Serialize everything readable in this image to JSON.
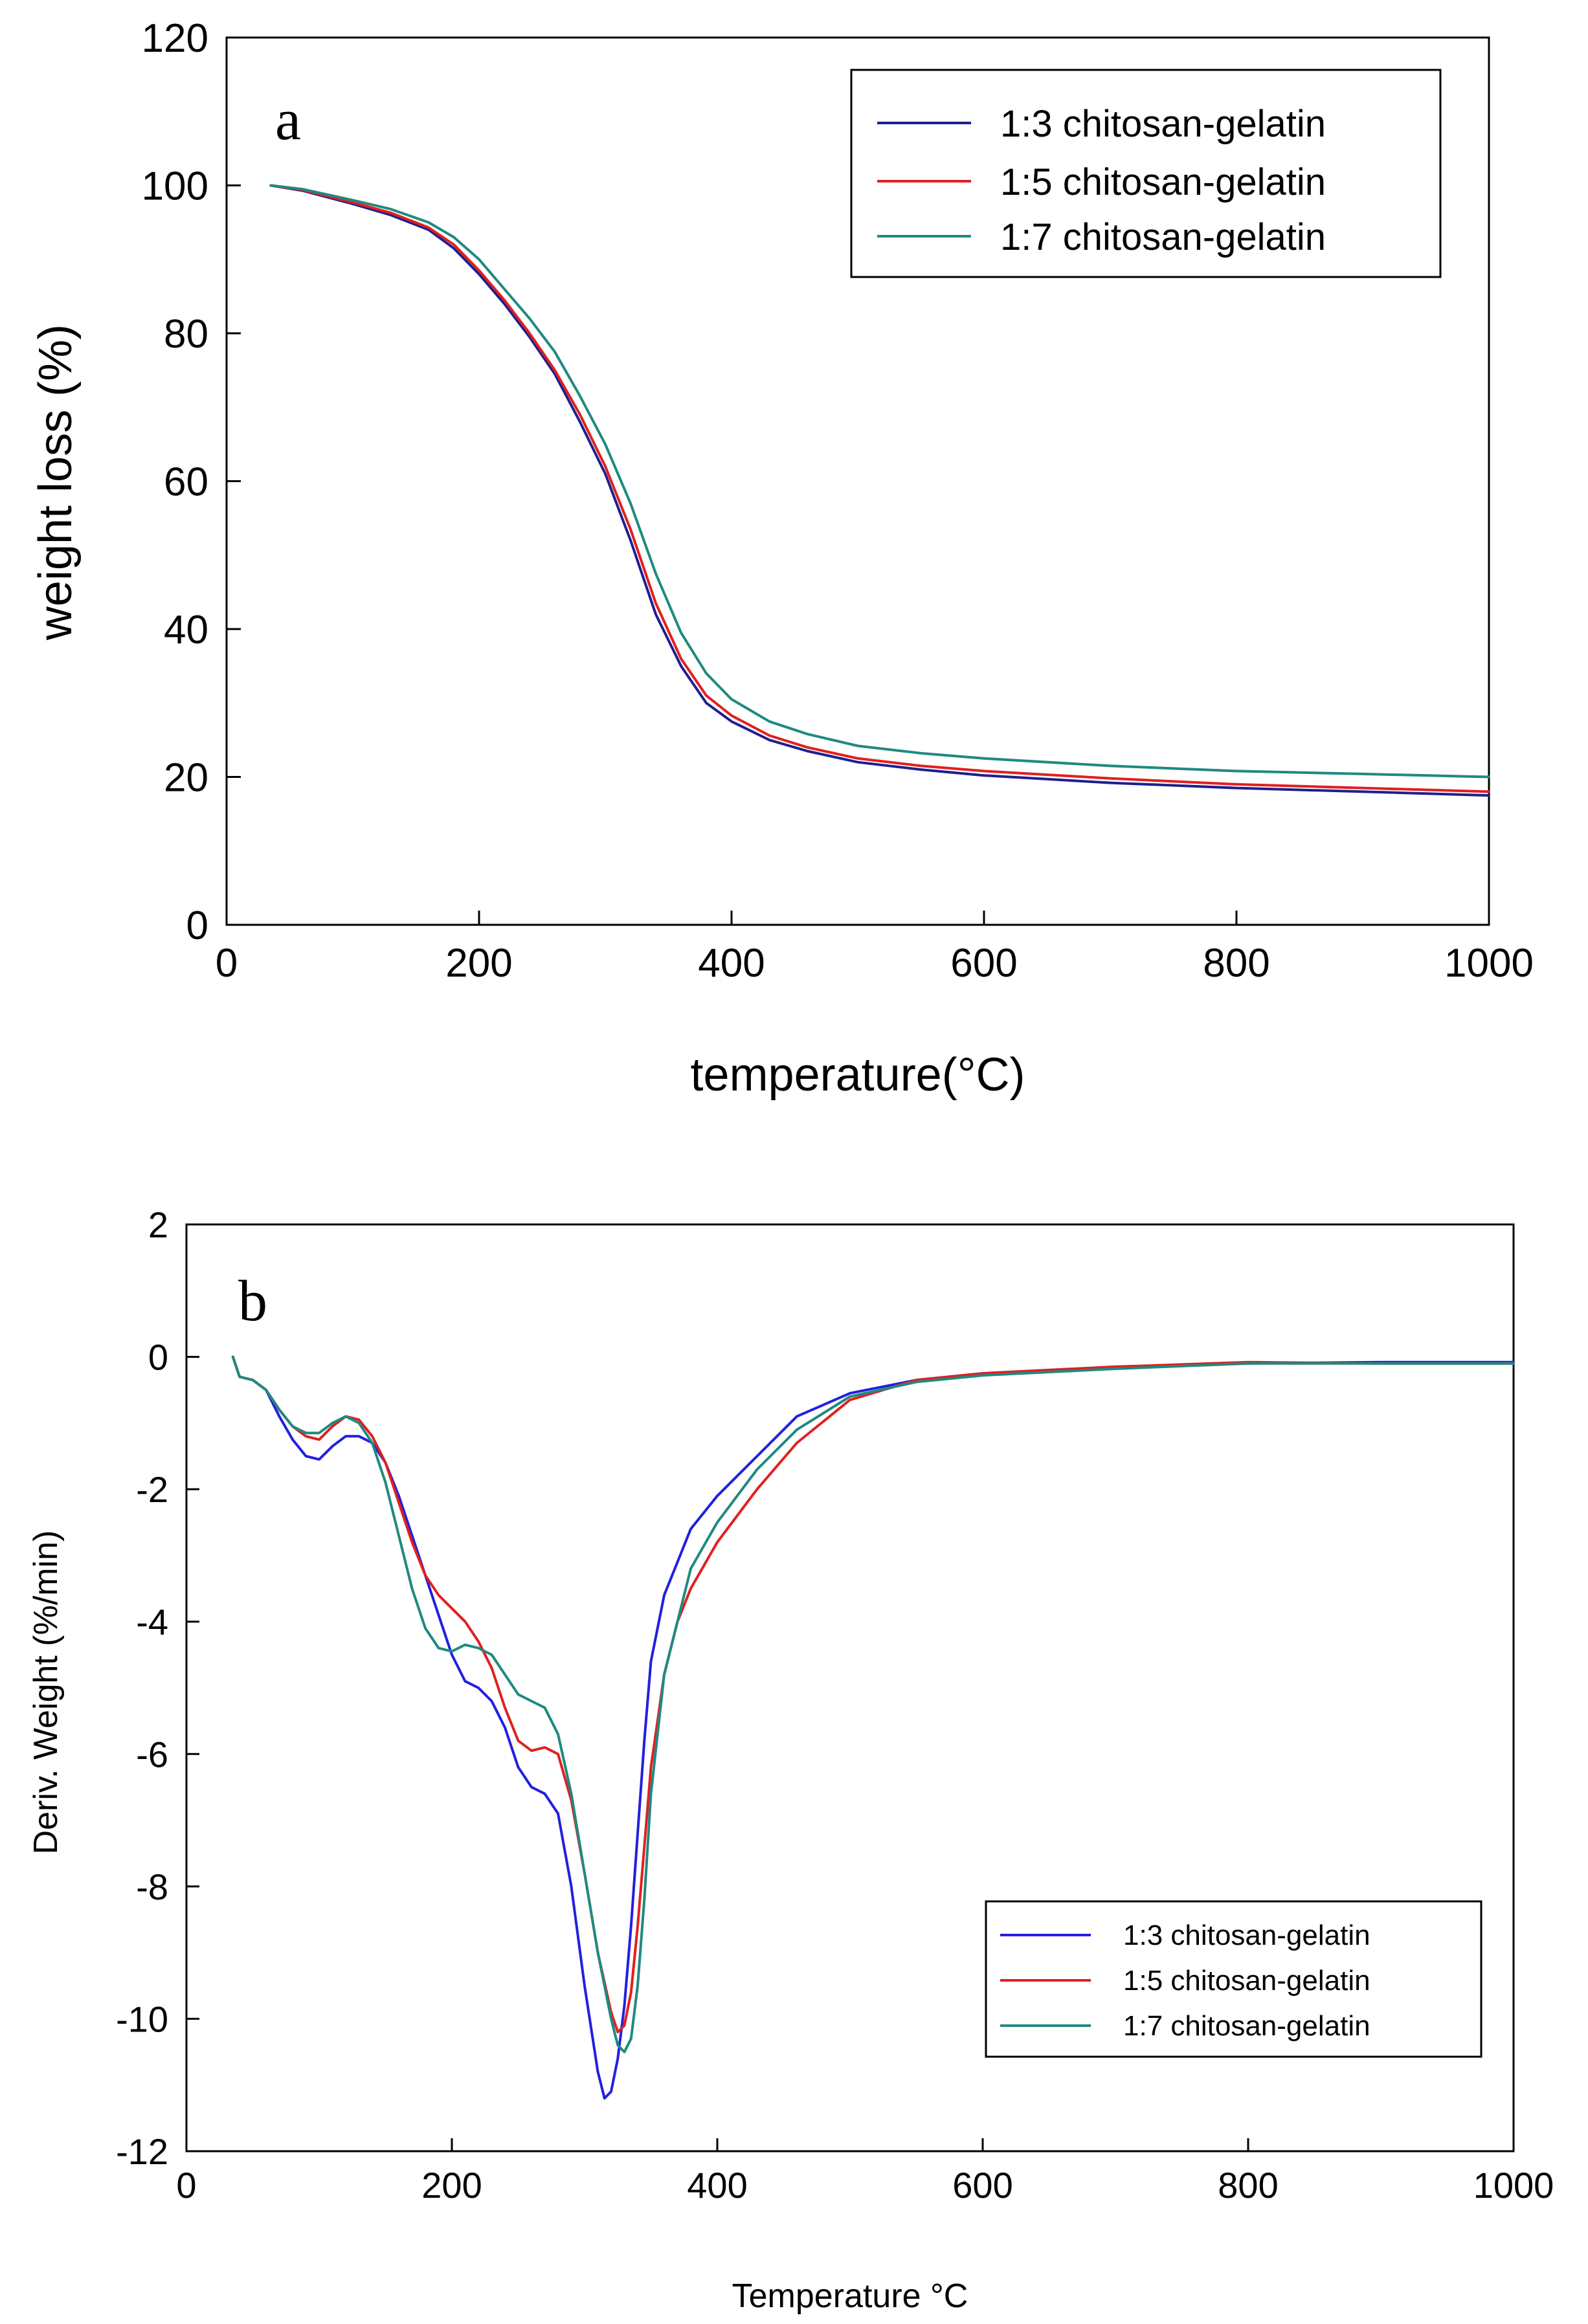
{
  "chart_data": [
    {
      "type": "line",
      "panel_label": "a",
      "xlabel": "temperature(°C)",
      "ylabel": "weight loss (%)",
      "xlim": [
        0,
        1000
      ],
      "ylim": [
        0,
        120
      ],
      "xticks": [
        0,
        200,
        400,
        600,
        800,
        1000
      ],
      "yticks": [
        0,
        20,
        40,
        60,
        80,
        100,
        120
      ],
      "xtick_labels": [
        "0",
        "200",
        "400",
        "600",
        "800",
        "1000"
      ],
      "ytick_labels": [
        "0",
        "20",
        "40",
        "60",
        "80",
        "100",
        "120"
      ],
      "legend_position": "top-right",
      "series": [
        {
          "name": "1:3 chitosan-gelatin",
          "color": "#1f1f8f",
          "x": [
            35,
            60,
            100,
            130,
            160,
            180,
            200,
            220,
            240,
            260,
            280,
            300,
            320,
            340,
            360,
            380,
            400,
            430,
            460,
            500,
            550,
            600,
            700,
            800,
            900,
            1000
          ],
          "y": [
            100,
            99.3,
            97.5,
            96,
            94,
            91.5,
            88,
            84,
            79.5,
            74.5,
            68,
            61,
            52,
            42,
            35,
            30,
            27.5,
            25,
            23.5,
            22,
            21,
            20.2,
            19.2,
            18.5,
            18,
            17.5
          ]
        },
        {
          "name": "1:5 chitosan-gelatin",
          "color": "#e02020",
          "x": [
            35,
            60,
            100,
            130,
            160,
            180,
            200,
            220,
            240,
            260,
            280,
            300,
            320,
            340,
            360,
            380,
            400,
            430,
            460,
            500,
            550,
            600,
            700,
            800,
            900,
            1000
          ],
          "y": [
            100,
            99.4,
            97.7,
            96.3,
            94.3,
            92,
            88.5,
            84.5,
            80,
            75,
            69,
            62,
            53.5,
            43.5,
            36,
            31,
            28.3,
            25.6,
            24,
            22.5,
            21.5,
            20.8,
            19.8,
            19,
            18.5,
            18
          ]
        },
        {
          "name": "1:7 chitosan-gelatin",
          "color": "#1f8a80",
          "x": [
            35,
            60,
            100,
            130,
            160,
            180,
            200,
            220,
            240,
            260,
            280,
            300,
            320,
            340,
            360,
            380,
            400,
            430,
            460,
            500,
            550,
            600,
            700,
            800,
            900,
            1000
          ],
          "y": [
            100,
            99.5,
            98,
            96.8,
            95,
            93,
            90,
            86,
            82,
            77.5,
            71.5,
            65,
            57,
            47.5,
            39.5,
            34,
            30.5,
            27.5,
            25.8,
            24.2,
            23.2,
            22.5,
            21.5,
            20.8,
            20.4,
            20
          ]
        }
      ]
    },
    {
      "type": "line",
      "panel_label": "b",
      "xlabel": "Temperature °C",
      "ylabel": "Deriv. Weight (%/min)",
      "xlim": [
        0,
        1000
      ],
      "ylim": [
        -12,
        2
      ],
      "xticks": [
        0,
        200,
        400,
        600,
        800,
        1000
      ],
      "yticks": [
        -12,
        -10,
        -8,
        -6,
        -4,
        -2,
        0,
        2
      ],
      "xtick_labels": [
        "0",
        "200",
        "400",
        "600",
        "800",
        "1000"
      ],
      "ytick_labels": [
        "-12",
        "-10",
        "-8",
        "-6",
        "-4",
        "-2",
        "0",
        "2"
      ],
      "legend_position": "bottom-right",
      "series": [
        {
          "name": "1:3 chitosan-gelatin",
          "color": "#2020e0",
          "x": [
            35,
            40,
            50,
            60,
            70,
            80,
            90,
            100,
            110,
            120,
            130,
            140,
            150,
            160,
            170,
            180,
            190,
            200,
            210,
            220,
            230,
            240,
            250,
            260,
            270,
            280,
            290,
            300,
            310,
            315,
            320,
            325,
            330,
            335,
            340,
            345,
            350,
            360,
            380,
            400,
            430,
            460,
            500,
            550,
            600,
            700,
            800,
            900,
            1000
          ],
          "y": [
            0,
            -0.3,
            -0.35,
            -0.5,
            -0.9,
            -1.25,
            -1.5,
            -1.55,
            -1.35,
            -1.2,
            -1.2,
            -1.3,
            -1.6,
            -2.1,
            -2.7,
            -3.3,
            -3.9,
            -4.5,
            -4.9,
            -5.0,
            -5.2,
            -5.6,
            -6.2,
            -6.5,
            -6.6,
            -6.9,
            -8.0,
            -9.5,
            -10.8,
            -11.2,
            -11.1,
            -10.6,
            -9.8,
            -8.6,
            -7.2,
            -5.8,
            -4.6,
            -3.6,
            -2.6,
            -2.1,
            -1.5,
            -0.9,
            -0.55,
            -0.35,
            -0.25,
            -0.15,
            -0.1,
            -0.08,
            -0.08
          ]
        },
        {
          "name": "1:5 chitosan-gelatin",
          "color": "#e02020",
          "x": [
            35,
            40,
            50,
            60,
            70,
            80,
            90,
            100,
            110,
            120,
            130,
            140,
            150,
            160,
            170,
            180,
            190,
            200,
            210,
            220,
            230,
            240,
            250,
            260,
            270,
            280,
            290,
            300,
            310,
            320,
            325,
            330,
            335,
            340,
            345,
            350,
            360,
            370,
            380,
            400,
            430,
            460,
            500,
            550,
            600,
            700,
            800,
            900,
            1000
          ],
          "y": [
            0,
            -0.3,
            -0.35,
            -0.5,
            -0.8,
            -1.05,
            -1.2,
            -1.25,
            -1.05,
            -0.9,
            -0.95,
            -1.2,
            -1.6,
            -2.2,
            -2.8,
            -3.3,
            -3.6,
            -3.8,
            -4.0,
            -4.3,
            -4.7,
            -5.3,
            -5.8,
            -5.95,
            -5.9,
            -6.0,
            -6.7,
            -7.8,
            -9.0,
            -9.9,
            -10.2,
            -10.1,
            -9.6,
            -8.6,
            -7.4,
            -6.2,
            -4.8,
            -4.0,
            -3.5,
            -2.8,
            -2.0,
            -1.3,
            -0.65,
            -0.35,
            -0.25,
            -0.15,
            -0.08,
            -0.1,
            -0.1
          ]
        },
        {
          "name": "1:7 chitosan-gelatin",
          "color": "#1f8a80",
          "x": [
            35,
            40,
            50,
            60,
            70,
            80,
            90,
            100,
            110,
            120,
            130,
            140,
            150,
            160,
            170,
            180,
            190,
            200,
            210,
            220,
            230,
            240,
            250,
            260,
            270,
            280,
            290,
            300,
            310,
            320,
            325,
            330,
            335,
            340,
            345,
            350,
            360,
            380,
            400,
            430,
            460,
            500,
            550,
            600,
            700,
            800,
            900,
            1000
          ],
          "y": [
            0,
            -0.3,
            -0.35,
            -0.5,
            -0.8,
            -1.05,
            -1.15,
            -1.15,
            -1.0,
            -0.9,
            -1.0,
            -1.3,
            -1.9,
            -2.7,
            -3.5,
            -4.1,
            -4.4,
            -4.45,
            -4.35,
            -4.4,
            -4.5,
            -4.8,
            -5.1,
            -5.2,
            -5.3,
            -5.7,
            -6.6,
            -7.8,
            -9.0,
            -10.0,
            -10.4,
            -10.5,
            -10.3,
            -9.5,
            -8.2,
            -6.6,
            -4.8,
            -3.2,
            -2.5,
            -1.7,
            -1.1,
            -0.6,
            -0.38,
            -0.28,
            -0.18,
            -0.1,
            -0.1,
            -0.1
          ]
        }
      ]
    }
  ]
}
